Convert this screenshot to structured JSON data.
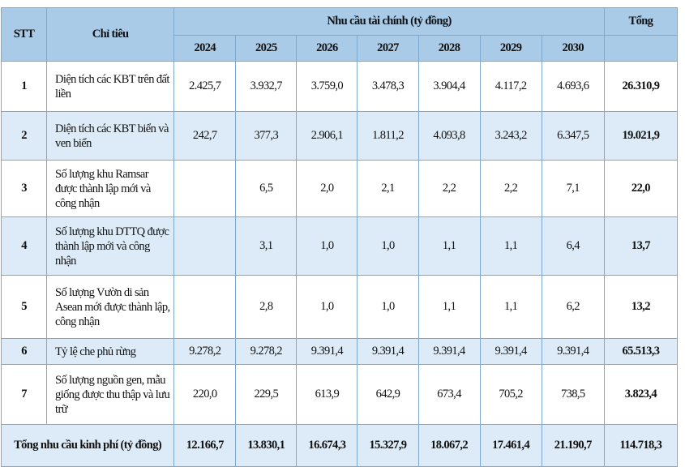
{
  "header": {
    "stt": "STT",
    "indicator": "Chỉ tiêu",
    "group": "Nhu cầu tài chính (tỷ đồng)",
    "total": "Tổng",
    "years": [
      "2024",
      "2025",
      "2026",
      "2027",
      "2028",
      "2029",
      "2030"
    ]
  },
  "rows": [
    {
      "stt": "1",
      "label": "Diện tích các KBT trên đất liền",
      "values": [
        "2.425,7",
        "3.932,7",
        "3.759,0",
        "3.478,3",
        "3.904,4",
        "4.117,2",
        "4.693,6"
      ],
      "total": "26.310,9"
    },
    {
      "stt": "2",
      "label": "Diện tích các KBT biển và ven biển",
      "values": [
        "242,7",
        "377,3",
        "2.906,1",
        "1.811,2",
        "4.093,8",
        "3.243,2",
        "6.347,5"
      ],
      "total": "19.021,9"
    },
    {
      "stt": "3",
      "label": "Số lượng khu Ramsar được thành lập mới và công nhận",
      "values": [
        "",
        "6,5",
        "2,0",
        "2,1",
        "2,2",
        "2,2",
        "7,1"
      ],
      "total": "22,0"
    },
    {
      "stt": "4",
      "label": "Số lượng khu DTTQ được thành lập mới và công nhận",
      "values": [
        "",
        "3,1",
        "1,0",
        "1,0",
        "1,1",
        "1,1",
        "6,4"
      ],
      "total": "13,7"
    },
    {
      "stt": "5",
      "label": "Số lượng Vườn di sản Asean mới được thành lập, công nhận",
      "values": [
        "",
        "2,8",
        "1,0",
        "1,0",
        "1,1",
        "1,1",
        "6,2"
      ],
      "total": "13,2"
    },
    {
      "stt": "6",
      "label": "Tỷ lệ che phủ rừng",
      "values": [
        "9.278,2",
        "9.278,2",
        "9.391,4",
        "9.391,4",
        "9.391,4",
        "9.391,4",
        "9.391,4"
      ],
      "total": "65.513,3"
    },
    {
      "stt": "7",
      "label": "Số lượng nguồn gen, mẫu giống được thu thập và lưu trữ",
      "values": [
        "220,0",
        "229,5",
        "613,9",
        "642,9",
        "673,4",
        "705,2",
        "738,5"
      ],
      "total": "3.823,4"
    }
  ],
  "footer": {
    "label": "Tổng nhu cầu kinh phí (tỷ đồng)",
    "values": [
      "12.166,7",
      "13.830,1",
      "16.674,3",
      "15.327,9",
      "18.067,2",
      "17.461,4",
      "21.190,7"
    ],
    "total": "114.718,3"
  }
}
